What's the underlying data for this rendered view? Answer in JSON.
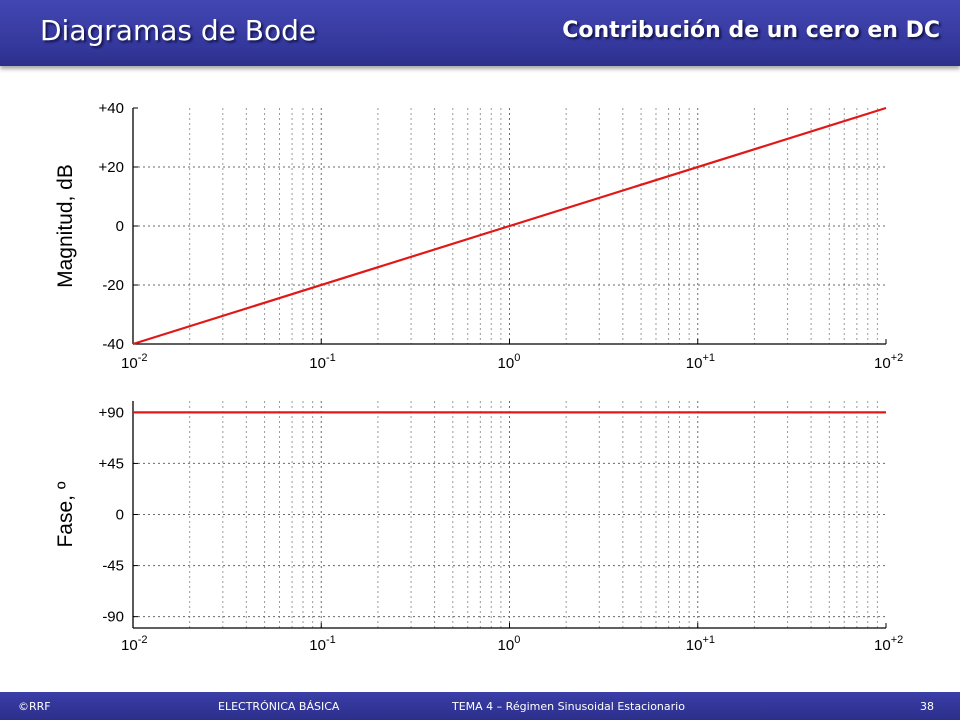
{
  "header": {
    "title": "Diagramas de Bode",
    "subtitle": "Contribución de un cero en DC",
    "background_color": "#3a3ea8"
  },
  "footer": {
    "copyright": "©RRF",
    "course": "ELECTRÓNICA BÁSICA",
    "topic": "TEMA 4 – Régimen Sinusoidal Estacionario",
    "page": "38"
  },
  "chart_data": [
    {
      "type": "line",
      "xscale": "log",
      "xlim": [
        0.01,
        100
      ],
      "x_ticks": [
        {
          "base": "10",
          "exp": "-2"
        },
        {
          "base": "10",
          "exp": "-1"
        },
        {
          "base": "10",
          "exp": "0"
        },
        {
          "base": "10",
          "exp": "+1"
        },
        {
          "base": "10",
          "exp": "+2"
        }
      ],
      "ylabel": "Magnitud, dB",
      "ylim": [
        -40,
        40
      ],
      "y_ticks": [
        "+40",
        "+20",
        "0",
        "-20",
        "-40"
      ],
      "grid": true,
      "series": [
        {
          "color": "#e01818",
          "x": [
            0.01,
            100
          ],
          "y": [
            -40,
            40
          ]
        }
      ]
    },
    {
      "type": "line",
      "xscale": "log",
      "xlim": [
        0.01,
        100
      ],
      "x_ticks": [
        {
          "base": "10",
          "exp": "-2"
        },
        {
          "base": "10",
          "exp": "-1"
        },
        {
          "base": "10",
          "exp": "0"
        },
        {
          "base": "10",
          "exp": "+1"
        },
        {
          "base": "10",
          "exp": "+2"
        }
      ],
      "ylabel": "Fase, º",
      "ylim": [
        -100,
        100
      ],
      "y_ticks": [
        "+90",
        "+45",
        "0",
        "-45",
        "-90"
      ],
      "grid": true,
      "series": [
        {
          "color": "#e01818",
          "x": [
            0.01,
            100
          ],
          "y": [
            90,
            90
          ]
        }
      ]
    }
  ]
}
